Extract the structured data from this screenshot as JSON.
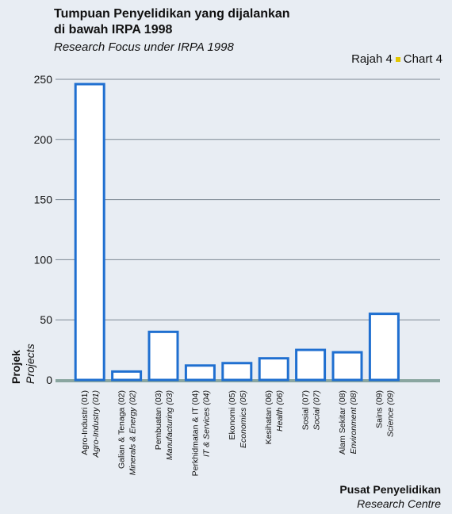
{
  "header": {
    "title_line1": "Tumpuan Penyelidikan yang dijalankan",
    "title_line2": "di bawah IRPA 1998",
    "title_en": "Research Focus under IRPA 1998",
    "chart_ms": "Rajah 4",
    "chart_en": "Chart 4"
  },
  "axes": {
    "xlabel_ms": "Pusat Penyelidikan",
    "xlabel_en": "Research Centre",
    "ylabel_ms": "Projek",
    "ylabel_en": "Projects"
  },
  "colors": {
    "bar_stroke": "#1f6fd0",
    "bar_fill": "#ffffff",
    "grid": "#7d8893",
    "baseline": "#8aa6a0",
    "background": "#e8edf3"
  },
  "chart_data": {
    "type": "bar",
    "title": "Tumpuan Penyelidikan yang dijalankan di bawah IRPA 1998",
    "xlabel": "Pusat Penyelidikan / Research Centre",
    "ylabel": "Projek / Projects",
    "ylim": [
      0,
      250
    ],
    "yticks": [
      0,
      50,
      100,
      150,
      200,
      250
    ],
    "grid": true,
    "categories": [
      {
        "ms": "Agro-Industri (01)",
        "en": "Agro-Industry (01)"
      },
      {
        "ms": "Galian & Tenaga (02)",
        "en": "Minerals & Energy (02)"
      },
      {
        "ms": "Pembuatan (03)",
        "en": "Manufacturing (03)"
      },
      {
        "ms": "Perkhidmatan & IT (04)",
        "en": "IT & Services (04)"
      },
      {
        "ms": "Ekonomi (05)",
        "en": "Economics (05)"
      },
      {
        "ms": "Kesihatan (06)",
        "en": "Health (06)"
      },
      {
        "ms": "Sosial (07)",
        "en": "Social (07)"
      },
      {
        "ms": "Alam Sekitar (08)",
        "en": "Environment (08)"
      },
      {
        "ms": "Sains (09)",
        "en": "Science (09)"
      }
    ],
    "values": [
      246,
      7,
      40,
      12,
      14,
      18,
      25,
      23,
      55
    ]
  }
}
